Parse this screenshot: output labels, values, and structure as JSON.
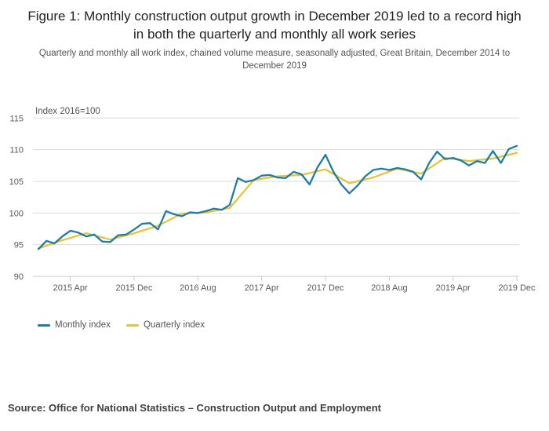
{
  "figure": {
    "title": "Figure 1: Monthly construction output growth in December 2019 led to a record high in both the quarterly and monthly all work series",
    "subtitle": "Quarterly and monthly all work index, chained volume measure, seasonally adjusted, Great Britain, December 2014 to December 2019",
    "axis_note": "Index 2016=100",
    "source": "Source: Office for National Statistics – Construction Output and Employment"
  },
  "legend": {
    "position": "bottom-left",
    "monthly_label": "Monthly index",
    "quarterly_label": "Quarterly index"
  },
  "colors": {
    "monthly": "#1d7da5",
    "quarterly": "#eac33b",
    "gridline": "#d9d9d9",
    "axis": "#bfcbd3",
    "tick_text": "#595959",
    "title_text": "#222222",
    "subtitle_text": "#555555",
    "source_text": "#3f4043"
  },
  "chart_data": {
    "type": "line",
    "title": "Figure 1: Monthly construction output growth in December 2019 led to a record high in both the quarterly and monthly all work series",
    "ylabel": "Index 2016=100",
    "xlabel": "",
    "grid": "horizontal",
    "ylim": [
      90,
      115
    ],
    "y_ticks": [
      90,
      95,
      100,
      105,
      110,
      115
    ],
    "x_start": "2014 Dec",
    "x_end": "2019 Dec",
    "x_tick_labels": [
      "2015 Apr",
      "2015 Dec",
      "2016 Aug",
      "2017 Apr",
      "2017 Dec",
      "2018 Aug",
      "2019 Apr",
      "2019 Dec"
    ],
    "x_tick_month_indices": [
      4,
      12,
      20,
      28,
      36,
      44,
      52,
      60
    ],
    "series": [
      {
        "name": "Monthly index",
        "frequency": "monthly",
        "month_step": 1,
        "first_point": "2014 Dec",
        "values": [
          94.3,
          95.6,
          95.2,
          96.3,
          97.2,
          96.9,
          96.3,
          96.6,
          95.5,
          95.4,
          96.5,
          96.6,
          97.4,
          98.3,
          98.4,
          97.4,
          100.3,
          99.8,
          99.5,
          100.1,
          100.0,
          100.3,
          100.7,
          100.5,
          101.3,
          105.5,
          104.9,
          105.2,
          105.9,
          106.0,
          105.6,
          105.5,
          106.5,
          106.1,
          104.5,
          107.2,
          109.2,
          106.5,
          104.5,
          103.1,
          104.3,
          105.8,
          106.8,
          107.0,
          106.8,
          107.1,
          106.9,
          106.5,
          105.3,
          107.9,
          109.7,
          108.5,
          108.7,
          108.3,
          107.5,
          108.2,
          107.9,
          109.8,
          107.9,
          110.1,
          110.6
        ]
      },
      {
        "name": "Quarterly index",
        "frequency": "quarterly",
        "month_step": 3,
        "first_point": "2014 Q4",
        "values": [
          94.4,
          95.7,
          96.8,
          95.8,
          96.8,
          98.0,
          99.9,
          100.1,
          100.8,
          105.2,
          105.8,
          106.0,
          106.9,
          104.7,
          105.6,
          107.0,
          106.2,
          108.7,
          108.2,
          108.6,
          109.5
        ]
      }
    ]
  }
}
